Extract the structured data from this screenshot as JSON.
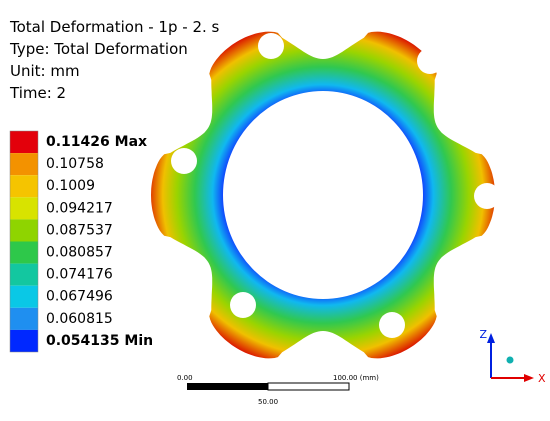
{
  "header": {
    "lines": [
      "Total Deformation - 1p - 2. s",
      "Type: Total Deformation",
      "Unit: mm",
      "Time: 2"
    ]
  },
  "legend": {
    "entries": [
      {
        "label": "0.11426 Max",
        "color": "#e3000b"
      },
      {
        "label": "0.10758",
        "color": "#f39200"
      },
      {
        "label": "0.1009",
        "color": "#f5c400"
      },
      {
        "label": "0.094217",
        "color": "#d8e300"
      },
      {
        "label": "0.087537",
        "color": "#8fd400"
      },
      {
        "label": "0.080857",
        "color": "#2ec84a"
      },
      {
        "label": "0.074176",
        "color": "#13c7a0"
      },
      {
        "label": "0.067496",
        "color": "#0ac8e6"
      },
      {
        "label": "0.060815",
        "color": "#1f8ff0"
      },
      {
        "label": "0.054135 Min",
        "color": "#0028ff"
      }
    ]
  },
  "scale_bar": {
    "start": "0.00",
    "end": "100.00 (mm)",
    "mid": "50.00"
  },
  "triad": {
    "z": "Z",
    "x": "X"
  }
}
